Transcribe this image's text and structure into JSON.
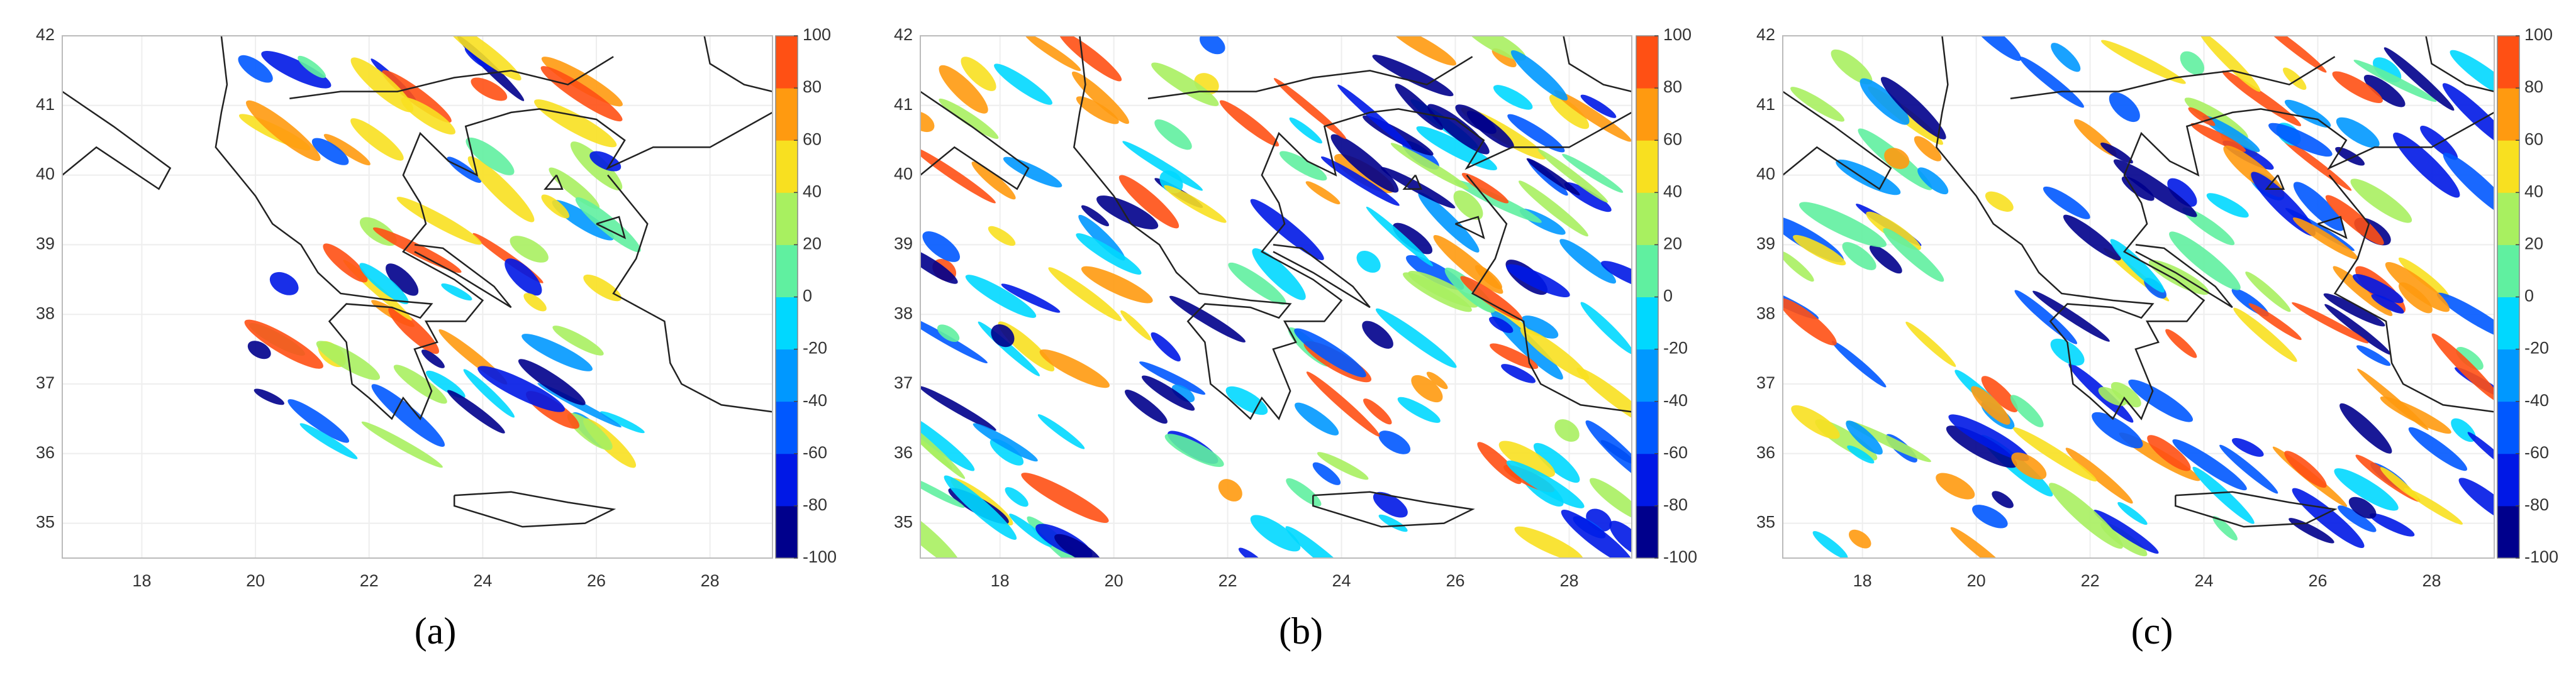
{
  "panels": [
    {
      "label": "(a)",
      "xlim": [
        16.6,
        29.1
      ],
      "ylim": [
        34.5,
        42
      ],
      "xticks": [
        18,
        20,
        22,
        24,
        26,
        28
      ],
      "yticks": [
        35,
        36,
        37,
        38,
        39,
        40,
        41,
        42
      ],
      "grid": true,
      "colorbar": {
        "lim": [
          -100,
          100
        ],
        "ticks": [
          -100,
          -80,
          -60,
          -40,
          -20,
          0,
          20,
          40,
          60,
          80,
          100
        ],
        "colors": [
          "#00008c",
          "#0018e6",
          "#0058ff",
          "#0098ff",
          "#00d8ff",
          "#60f0a0",
          "#a8f060",
          "#f8e020",
          "#ff9a10",
          "#ff5014"
        ]
      }
    },
    {
      "label": "(b)",
      "xlim": [
        16.6,
        29.1
      ],
      "ylim": [
        34.5,
        42
      ],
      "xticks": [
        18,
        20,
        22,
        24,
        26,
        28
      ],
      "yticks": [
        35,
        36,
        37,
        38,
        39,
        40,
        41,
        42
      ],
      "grid": true,
      "colorbar": {
        "lim": [
          -100,
          100
        ],
        "ticks": [
          -100,
          -80,
          -60,
          -40,
          -20,
          0,
          20,
          40,
          60,
          80,
          100
        ],
        "colors": [
          "#00008c",
          "#0018e6",
          "#0058ff",
          "#0098ff",
          "#00d8ff",
          "#60f0a0",
          "#a8f060",
          "#f8e020",
          "#ff9a10",
          "#ff5014"
        ]
      }
    },
    {
      "label": "(c)",
      "xlim": [
        16.6,
        29.1
      ],
      "ylim": [
        34.5,
        42
      ],
      "xticks": [
        18,
        20,
        22,
        24,
        26,
        28
      ],
      "yticks": [
        35,
        36,
        37,
        38,
        39,
        40,
        41,
        42
      ],
      "grid": true,
      "colorbar": {
        "lim": [
          -100,
          100
        ],
        "ticks": [
          -100,
          -80,
          -60,
          -40,
          -20,
          0,
          20,
          40,
          60,
          80,
          100
        ],
        "colors": [
          "#00008c",
          "#0018e6",
          "#0058ff",
          "#0098ff",
          "#00d8ff",
          "#60f0a0",
          "#a8f060",
          "#f8e020",
          "#ff9a10",
          "#ff5014"
        ]
      }
    }
  ]
}
